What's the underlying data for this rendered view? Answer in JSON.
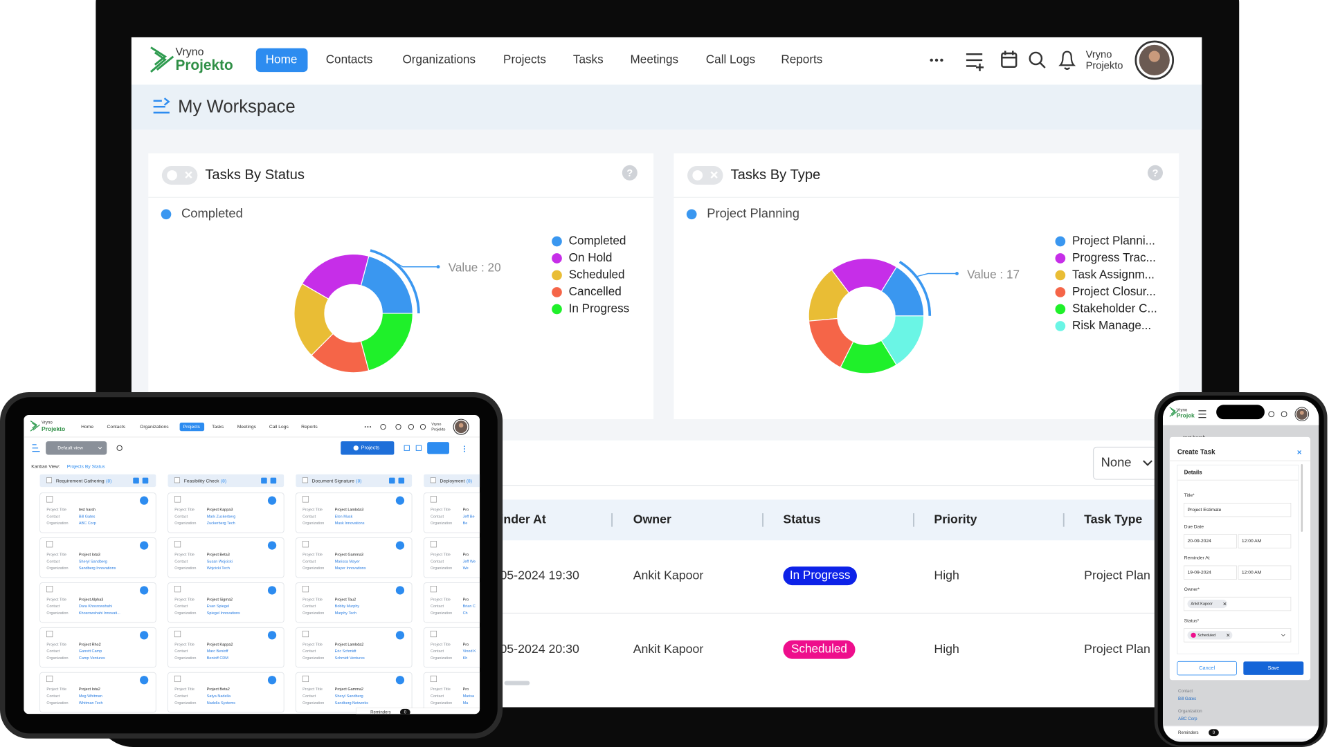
{
  "laptop": {
    "nav": {
      "logo_top": "Vryno",
      "logo_bottom": "Projekto",
      "items": [
        "Home",
        "Contacts",
        "Organizations",
        "Projects",
        "Tasks",
        "Meetings",
        "Call Logs",
        "Reports"
      ],
      "user_top": "Vryno",
      "user_bottom": "Projekto"
    },
    "page_title": "My Workspace",
    "help_icon": "?",
    "table": {
      "filter": "None",
      "columns": [
        "inder At",
        "Owner",
        "Status",
        "Priority",
        "Task Type"
      ],
      "rows": [
        [
          "05-2024 19:30",
          "Ankit Kapoor",
          "In Progress",
          "High",
          "Project Plan"
        ],
        [
          "05-2024 20:30",
          "Ankit Kapoor",
          "Scheduled",
          "High",
          "Project Plan"
        ]
      ]
    }
  },
  "chart_data": [
    {
      "type": "pie",
      "title": "Tasks By Status",
      "selected": "Completed",
      "tooltip": "Value : 20",
      "categories": [
        "Completed",
        "On Hold",
        "Scheduled",
        "Cancelled",
        "In Progress"
      ],
      "values": [
        20,
        20,
        20,
        16,
        20
      ],
      "colors": [
        "#3a97f0",
        "#c62ee8",
        "#e9bd35",
        "#f56548",
        "#1ff02a"
      ]
    },
    {
      "type": "pie",
      "title": "Tasks By Type",
      "selected": "Project Planning",
      "tooltip": "Value : 17",
      "categories": [
        "Project Planni...",
        "Progress Trac...",
        "Task Assignm...",
        "Project Closur...",
        "Stakeholder C...",
        "Risk Manage..."
      ],
      "values": [
        17,
        20,
        17,
        17,
        17,
        17
      ],
      "colors": [
        "#3a97f0",
        "#c62ee8",
        "#e9bd35",
        "#f56548",
        "#1ff02a",
        "#6af5e5"
      ]
    }
  ],
  "tablet": {
    "nav": {
      "logo_top": "Vryno",
      "logo_bottom": "Projekto",
      "items": [
        "Home",
        "Contacts",
        "Organizations",
        "Projects",
        "Tasks",
        "Meetings",
        "Call Logs",
        "Reports"
      ],
      "user_top": "Vryno",
      "user_bottom": "Projekto"
    },
    "view": "Default view",
    "new_button": "Projects",
    "kanban_label": "Kanban View:",
    "kanban_name": "Projects By Status",
    "field_labels": [
      "Project Title",
      "Contact",
      "Organization"
    ],
    "columns": [
      {
        "name": "Requirement Gathering",
        "count": "(8)",
        "cards": [
          [
            "test harsh",
            "Bill Gates",
            "ABC Corp"
          ],
          [
            "Project Iota3",
            "Sheryl Sandberg",
            "Sandberg Innovations"
          ],
          [
            "Project Alpha3",
            "Dara Khosrowshahi",
            "Khosrowshahi Innovati..."
          ],
          [
            "Project Rho2",
            "Garrett Camp",
            "Camp Ventures"
          ],
          [
            "Project Iota2",
            "Meg Whitman",
            "Whitman Tech"
          ]
        ]
      },
      {
        "name": "Feasibility Check",
        "count": "(8)",
        "cards": [
          [
            "Project Kappa3",
            "Mark Zuckerberg",
            "Zuckerberg Tech"
          ],
          [
            "Project Beta3",
            "Susan Wojcicki",
            "Wojcicki Tech"
          ],
          [
            "Project Sigma2",
            "Evan Spiegel",
            "Spiegel Innovations"
          ],
          [
            "Project Kappa2",
            "Marc Benioff",
            "Benioff CRM"
          ],
          [
            "Project Beta2",
            "Satya Nadella",
            "Nadella Systems"
          ]
        ]
      },
      {
        "name": "Document Signature",
        "count": "(8)",
        "cards": [
          [
            "Project Lambda3",
            "Elon Musk",
            "Musk Innovations"
          ],
          [
            "Project Gamma3",
            "Marissa Mayer",
            "Mayer Innovations"
          ],
          [
            "Project Tau2",
            "Bobby Murphy",
            "Murphy Tech"
          ],
          [
            "Project Lambda2",
            "Eric Schmidt",
            "Schmidt Ventures"
          ],
          [
            "Project Gamma2",
            "Sheryl Sandberg",
            "Sandberg Networks"
          ]
        ]
      },
      {
        "name": "Deployment",
        "count": "(8)",
        "cards": [
          [
            "Pro",
            "Jeff Be",
            "Be"
          ],
          [
            "Pro",
            "Jeff We",
            "We"
          ],
          [
            "Pro",
            "Brian C",
            "Ch"
          ],
          [
            "Pro",
            "Vinod K",
            "Kh"
          ],
          [
            "Pro",
            "Marisa",
            "Ma"
          ]
        ]
      }
    ],
    "reminders": "Reminders",
    "reminder_count": 0
  },
  "phone": {
    "logo_top": "Vryno",
    "logo_bottom": "Projek",
    "background_record": "test harsh",
    "modal": {
      "title": "Create Task",
      "tab": "Details",
      "fields": [
        {
          "label": "Title*",
          "value": "Project Estimate"
        },
        {
          "label": "Due Date",
          "date": "20-09-2024",
          "time": "12:00 AM"
        },
        {
          "label": "Reminder At",
          "date": "19-09-2024",
          "time": "12:00 AM"
        },
        {
          "label": "Owner*",
          "value": "Ankit Kapoor"
        },
        {
          "label": "Status*",
          "value": "Scheduled"
        }
      ],
      "cancel": "Cancel",
      "save": "Save"
    },
    "background_fields": [
      {
        "label": "Contact",
        "value": "Bill Gates"
      },
      {
        "label": "Organization",
        "value": "ABC Corp"
      }
    ],
    "reminders": "Reminders",
    "reminder_count": 0
  }
}
